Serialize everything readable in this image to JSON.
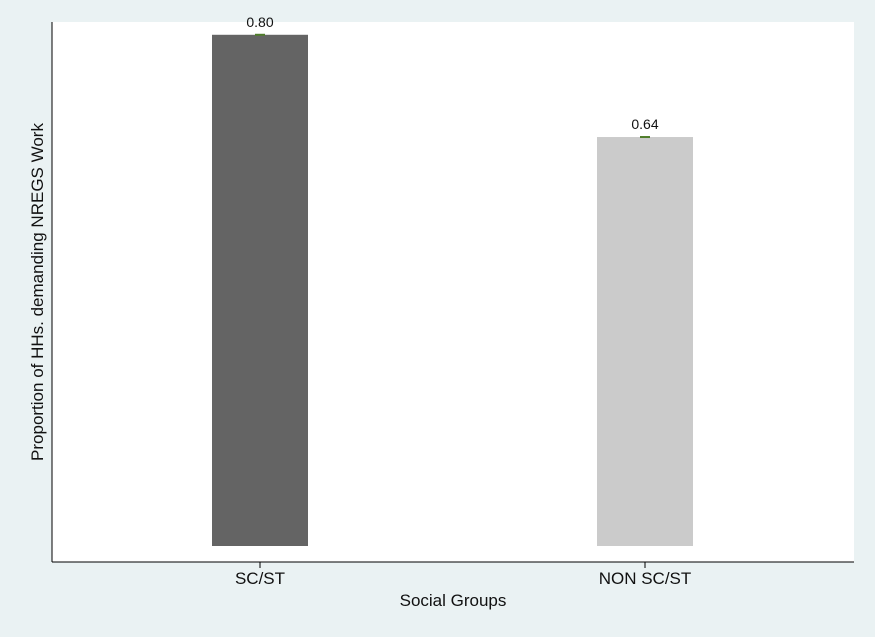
{
  "chart_data": {
    "type": "bar",
    "categories": [
      "SC/ST",
      "NON SC/ST"
    ],
    "values": [
      0.8,
      0.64
    ],
    "value_labels": [
      "0.80",
      "0.64"
    ],
    "bar_colors": [
      "#646464",
      "#cbcbcb"
    ],
    "cap_color": "#4f7d2a",
    "xlabel": "Social Groups",
    "ylabel": "Proportion of HHs. demanding NREGS Work",
    "ylim": [
      0,
      0.82
    ],
    "grid": false,
    "legend": "none"
  },
  "colors": {
    "page_background": "#eaf2f3",
    "plot_background": "#ffffff"
  }
}
